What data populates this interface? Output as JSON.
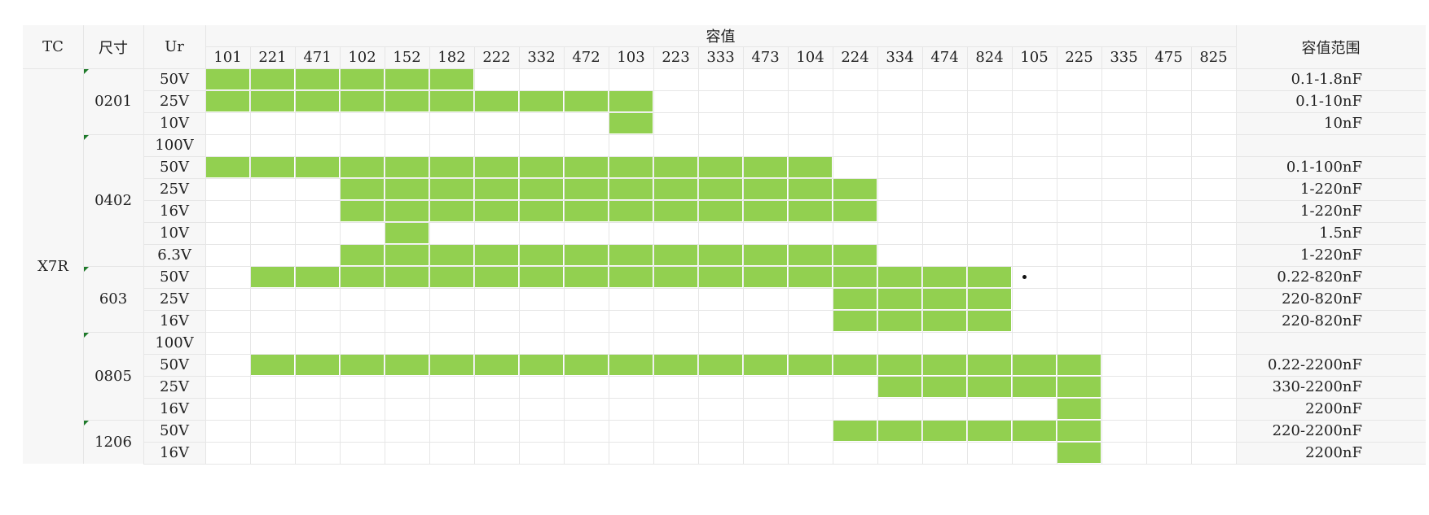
{
  "header": {
    "tc": "TC",
    "size": "尺寸",
    "ur": "Ur",
    "capacitance": "容值",
    "range": "容值范围"
  },
  "codes": [
    "101",
    "221",
    "471",
    "102",
    "152",
    "182",
    "222",
    "332",
    "472",
    "103",
    "223",
    "333",
    "473",
    "104",
    "224",
    "334",
    "474",
    "824",
    "105",
    "225",
    "335",
    "475",
    "825"
  ],
  "tc_value": "X7R",
  "groups": [
    {
      "size": "0201",
      "rows": [
        {
          "ur": "50V",
          "start": 0,
          "end": 5,
          "range": "0.1-1.8nF"
        },
        {
          "ur": "25V",
          "start": 0,
          "end": 9,
          "range": "0.1-10nF"
        },
        {
          "ur": "10V",
          "start": 9,
          "end": 9,
          "range": "10nF"
        }
      ]
    },
    {
      "size": "0402",
      "rows": [
        {
          "ur": "100V",
          "start": null,
          "end": null,
          "range": ""
        },
        {
          "ur": "50V",
          "start": 0,
          "end": 13,
          "range": "0.1-100nF"
        },
        {
          "ur": "25V",
          "start": 3,
          "end": 14,
          "range": "1-220nF"
        },
        {
          "ur": "16V",
          "start": 3,
          "end": 14,
          "range": "1-220nF"
        },
        {
          "ur": "10V",
          "start": 4,
          "end": 4,
          "range": "1.5nF"
        },
        {
          "ur": "6.3V",
          "start": 3,
          "end": 14,
          "range": "1-220nF"
        }
      ]
    },
    {
      "size": "603",
      "rows": [
        {
          "ur": "50V",
          "start": 1,
          "end": 17,
          "range": "0.22-820nF"
        },
        {
          "ur": "25V",
          "start": 14,
          "end": 17,
          "range": "220-820nF"
        },
        {
          "ur": "16V",
          "start": 14,
          "end": 17,
          "range": "220-820nF"
        }
      ]
    },
    {
      "size": "0805",
      "rows": [
        {
          "ur": "100V",
          "start": null,
          "end": null,
          "range": ""
        },
        {
          "ur": "50V",
          "start": 1,
          "end": 19,
          "range": "0.22-2200nF"
        },
        {
          "ur": "25V",
          "start": 15,
          "end": 19,
          "range": "330-2200nF"
        },
        {
          "ur": "16V",
          "start": 19,
          "end": 19,
          "range": "2200nF"
        }
      ]
    },
    {
      "size": "1206",
      "rows": [
        {
          "ur": "50V",
          "start": 14,
          "end": 19,
          "range": "220-2200nF"
        },
        {
          "ur": "16V",
          "start": 19,
          "end": 19,
          "range": "2200nF"
        }
      ]
    }
  ]
}
